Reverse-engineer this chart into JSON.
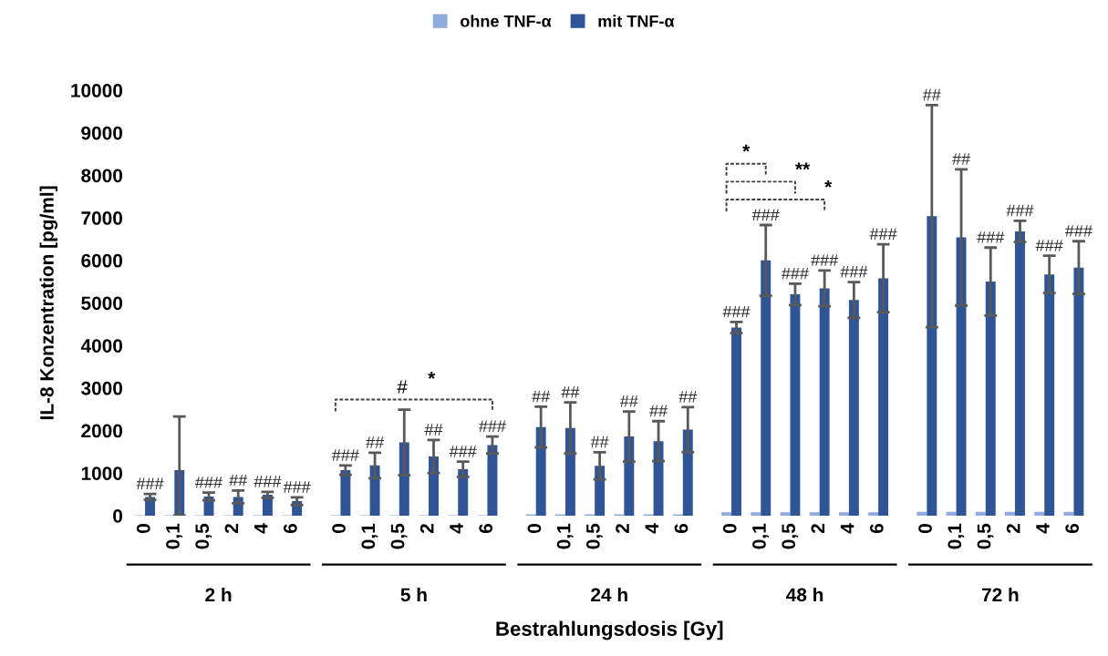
{
  "chart_data": [
    {
      "type": "bar",
      "categories": [
        "0",
        "0,1",
        "0,5",
        "2",
        "4",
        "6"
      ],
      "xlabel": "2 h",
      "ylabel": "IL-8 Konzentration [pg/ml]",
      "ylim": [
        0,
        10000
      ],
      "yticks": [
        0,
        1000,
        2000,
        3000,
        4000,
        5000,
        6000,
        7000,
        8000,
        9000,
        10000
      ],
      "legend": "top",
      "grid": false,
      "series": [
        {
          "name": "ohne TNF-α",
          "color": "#8faadc",
          "values": [
            10,
            10,
            10,
            10,
            10,
            10
          ]
        },
        {
          "name": "mit TNF-α",
          "color": "#2f5597",
          "values": [
            440,
            1070,
            450,
            440,
            490,
            340
          ],
          "errors": [
            70,
            [
              0,
              2330
            ],
            90,
            150,
            70,
            90
          ]
        }
      ],
      "annotations": [
        {
          "text": "###",
          "x": "0",
          "y": 510
        },
        {
          "text": "###",
          "x": "0,5",
          "y": 540
        },
        {
          "text": "##",
          "x": "2",
          "y": 590
        },
        {
          "text": "###",
          "x": "4",
          "y": 560
        },
        {
          "text": "###",
          "x": "6",
          "y": 430
        }
      ]
    },
    {
      "type": "bar",
      "categories": [
        "0",
        "0,1",
        "0,5",
        "2",
        "4",
        "6"
      ],
      "xlabel": "5 h",
      "ylim": [
        0,
        10000
      ],
      "tick_labels": "x",
      "grid": false,
      "series": [
        {
          "color": "#8faadc",
          "values": [
            10,
            10,
            10,
            10,
            10,
            10
          ]
        },
        {
          "color": "#2f5597",
          "values": [
            1070,
            1180,
            1720,
            1390,
            1090,
            1660
          ],
          "errors": [
            110,
            300,
            770,
            390,
            180,
            200
          ]
        }
      ],
      "annotations": [
        "#",
        "*",
        {
          "text": "###",
          "x": "0",
          "y": 1180
        },
        {
          "text": "##",
          "x": "0,1",
          "y": 1480
        },
        {
          "text": "##",
          "x": "2",
          "y": 1780
        },
        {
          "text": "###",
          "x": "4",
          "y": 1270
        },
        {
          "text": "###",
          "x": "6",
          "y": 1860
        }
      ]
    },
    {
      "type": "bar",
      "categories": [
        "0",
        "0,1",
        "0,5",
        "2",
        "4",
        "6"
      ],
      "xlabel": "24 h",
      "ylim": [
        0,
        10000
      ],
      "tick_labels": "x",
      "grid": false,
      "series": [
        {
          "color": "#8faadc",
          "values": [
            30,
            30,
            30,
            30,
            30,
            30
          ]
        },
        {
          "color": "#2f5597",
          "values": [
            2080,
            2060,
            1170,
            1860,
            1750,
            2020
          ],
          "errors": [
            480,
            600,
            320,
            590,
            470,
            530
          ]
        }
      ],
      "annotations": [
        "Bestrahlungsdosis [Gy]",
        {
          "text": "##",
          "x": "0",
          "y": 2560
        },
        {
          "text": "##",
          "x": "0,1",
          "y": 2660
        },
        {
          "text": "##",
          "x": "0,5",
          "y": 1490
        },
        {
          "text": "##",
          "x": "2",
          "y": 2450
        },
        {
          "text": "##",
          "x": "4",
          "y": 2220
        },
        {
          "text": "##",
          "x": "6",
          "y": 2550
        }
      ]
    },
    {
      "type": "bar",
      "categories": [
        "0",
        "0,1",
        "0,5",
        "2",
        "4",
        "6"
      ],
      "xlabel": "48 h",
      "ylim": [
        0,
        10000
      ],
      "tick_labels": "x",
      "grid": false,
      "series": [
        {
          "color": "#8faadc",
          "values": [
            80,
            80,
            80,
            80,
            80,
            80
          ]
        },
        {
          "color": "#2f5597",
          "values": [
            4420,
            6000,
            5200,
            5340,
            5070,
            5580
          ],
          "errors": [
            130,
            830,
            250,
            420,
            420,
            800
          ]
        }
      ],
      "annotations": [
        "*",
        "**",
        "*",
        {
          "text": "###",
          "x": "0",
          "y": 4550
        },
        {
          "text": "###",
          "x": "0,1",
          "y": 6830
        },
        {
          "text": "###",
          "x": "0,5",
          "y": 5450
        },
        {
          "text": "###",
          "x": "2",
          "y": 5760
        },
        {
          "text": "###",
          "x": "4",
          "y": 5490
        },
        {
          "text": "###",
          "x": "6",
          "y": 6380
        }
      ]
    },
    {
      "type": "bar",
      "categories": [
        "0",
        "0,1",
        "0,5",
        "2",
        "4",
        "6"
      ],
      "xlabel": "72 h",
      "ylim": [
        0,
        10000
      ],
      "tick_labels": "x",
      "grid": false,
      "series": [
        {
          "color": "#8faadc",
          "values": [
            90,
            90,
            90,
            90,
            90,
            90
          ]
        },
        {
          "color": "#2f5597",
          "values": [
            7040,
            6540,
            5500,
            6680,
            5670,
            5830
          ],
          "errors": [
            2610,
            1600,
            800,
            250,
            440,
            620
          ]
        }
      ],
      "annotations": [
        {
          "text": "##",
          "x": "0",
          "y": 9650
        },
        {
          "text": "##",
          "x": "0,1",
          "y": 8140
        },
        {
          "text": "###",
          "x": "0,5",
          "y": 6300
        },
        {
          "text": "###",
          "x": "2",
          "y": 6930
        },
        {
          "text": "###",
          "x": "4",
          "y": 6110
        },
        {
          "text": "###",
          "x": "6",
          "y": 6450
        }
      ]
    }
  ]
}
